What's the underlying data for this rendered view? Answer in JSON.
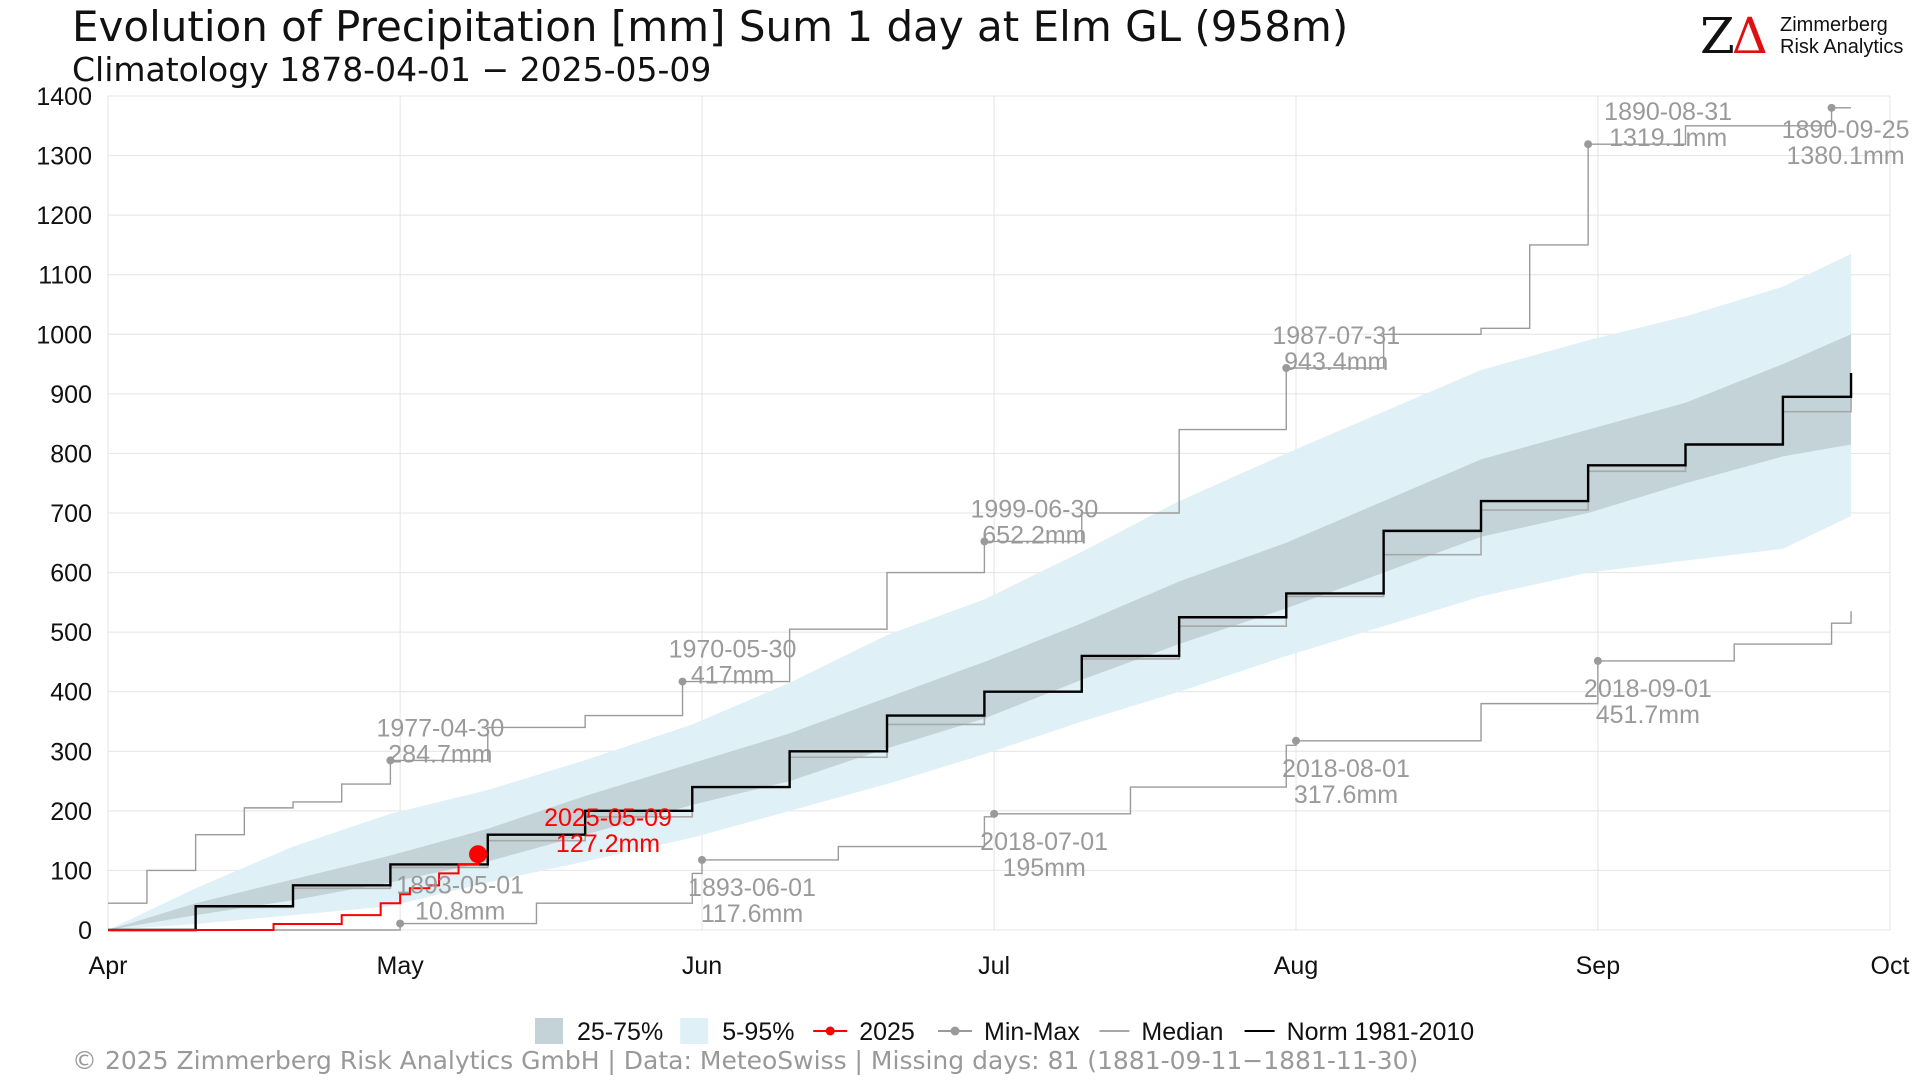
{
  "header": {
    "title": "Evolution of Precipitation [mm] Sum 1 day at Elm  GL (958m)",
    "subtitle": "Climatology 1878-04-01 − 2025-05-09"
  },
  "logo": {
    "mark": "ZΔ",
    "line1": "Zimmerberg",
    "line2": "Risk Analytics"
  },
  "footer": {
    "text": "©  2025 Zimmerberg Risk Analytics GmbH | Data: MeteoSwiss | Missing days: 81 (1881-09-11−1881-11-30)"
  },
  "colors": {
    "band_25_75": "#c3d3d8",
    "band_5_95": "#dff0f7",
    "current": "#ff0000",
    "minmax": "#9a9a9a",
    "median": "#a8a8a8",
    "norm": "#000000",
    "grid": "#e4e4e4"
  },
  "legend": [
    {
      "label": "25-75%",
      "symbol": "box",
      "color": "#c3d3d8"
    },
    {
      "label": "5-95%",
      "symbol": "box",
      "color": "#dff0f7"
    },
    {
      "label": "2025",
      "symbol": "line-point",
      "color": "#ff0000"
    },
    {
      "label": "Min-Max",
      "symbol": "line-point",
      "color": "#9a9a9a"
    },
    {
      "label": "Median",
      "symbol": "line",
      "color": "#a8a8a8"
    },
    {
      "label": "Norm 1981-2010",
      "symbol": "line",
      "color": "#000000"
    }
  ],
  "chart_data": {
    "type": "line",
    "title": "Evolution of Precipitation [mm] Sum 1 day at Elm  GL (958m)",
    "xlabel": "",
    "ylabel": "",
    "x_domain": [
      "04-01",
      "10-01"
    ],
    "ylim": [
      0,
      1400
    ],
    "y_ticks": [
      0,
      100,
      200,
      300,
      400,
      500,
      600,
      700,
      800,
      900,
      1000,
      1100,
      1200,
      1300,
      1400
    ],
    "x_ticks": [
      {
        "date": "04-01",
        "label": "Apr"
      },
      {
        "date": "05-01",
        "label": "May"
      },
      {
        "date": "06-01",
        "label": "Jun"
      },
      {
        "date": "07-01",
        "label": "Jul"
      },
      {
        "date": "08-01",
        "label": "Aug"
      },
      {
        "date": "09-01",
        "label": "Sep"
      },
      {
        "date": "10-01",
        "label": "Oct"
      }
    ],
    "grid": true,
    "legend_position": "bottom",
    "bands": [
      {
        "name": "5-95%",
        "x": [
          "04-01",
          "04-10",
          "04-20",
          "04-30",
          "05-10",
          "05-20",
          "05-31",
          "06-10",
          "06-20",
          "06-30",
          "07-10",
          "07-20",
          "07-31",
          "08-10",
          "08-20",
          "08-31",
          "09-10",
          "09-20",
          "09-27"
        ],
        "lower": [
          0,
          10,
          25,
          40,
          80,
          115,
          155,
          200,
          245,
          295,
          350,
          400,
          460,
          510,
          560,
          600,
          620,
          640,
          695
        ],
        "upper": [
          0,
          70,
          140,
          195,
          235,
          285,
          345,
          415,
          495,
          555,
          635,
          720,
          800,
          870,
          940,
          990,
          1030,
          1080,
          1135
        ]
      },
      {
        "name": "25-75%",
        "x": [
          "04-01",
          "04-10",
          "04-20",
          "04-30",
          "05-10",
          "05-20",
          "05-31",
          "06-10",
          "06-20",
          "06-30",
          "07-10",
          "07-20",
          "07-31",
          "08-10",
          "08-20",
          "08-31",
          "09-10",
          "09-20",
          "09-27"
        ],
        "lower": [
          0,
          25,
          50,
          80,
          115,
          160,
          210,
          250,
          305,
          355,
          420,
          480,
          540,
          600,
          660,
          700,
          750,
          795,
          815
        ],
        "upper": [
          0,
          45,
          85,
          125,
          170,
          225,
          280,
          330,
          390,
          450,
          515,
          585,
          650,
          720,
          790,
          840,
          885,
          950,
          1000
        ]
      }
    ],
    "series": [
      {
        "name": "Norm 1981-2010",
        "x": [
          "04-01",
          "04-10",
          "04-20",
          "04-30",
          "05-10",
          "05-20",
          "05-31",
          "06-10",
          "06-20",
          "06-30",
          "07-10",
          "07-20",
          "07-31",
          "08-10",
          "08-20",
          "08-31",
          "09-10",
          "09-20",
          "09-27"
        ],
        "y": [
          0,
          40,
          75,
          110,
          160,
          200,
          240,
          300,
          360,
          400,
          460,
          525,
          565,
          670,
          720,
          780,
          815,
          895,
          935
        ]
      },
      {
        "name": "Median",
        "x": [
          "04-01",
          "04-10",
          "04-20",
          "04-30",
          "05-10",
          "05-20",
          "05-31",
          "06-10",
          "06-20",
          "06-30",
          "07-10",
          "07-20",
          "07-31",
          "08-10",
          "08-20",
          "08-31",
          "09-10",
          "09-20",
          "09-27"
        ],
        "y": [
          0,
          38,
          70,
          105,
          150,
          190,
          240,
          290,
          345,
          400,
          455,
          510,
          560,
          630,
          705,
          770,
          815,
          870,
          905
        ]
      },
      {
        "name": "2025",
        "x": [
          "04-01",
          "04-17",
          "04-18",
          "04-24",
          "04-25",
          "04-28",
          "04-29",
          "05-01",
          "05-02",
          "05-04",
          "05-05",
          "05-07",
          "05-09"
        ],
        "y": [
          0,
          0,
          10,
          10,
          25,
          25,
          45,
          60,
          70,
          75,
          95,
          110,
          127.2
        ]
      },
      {
        "name": "Max",
        "x": [
          "04-01",
          "04-05",
          "04-10",
          "04-15",
          "04-20",
          "04-25",
          "04-30",
          "05-10",
          "05-20",
          "05-30",
          "06-10",
          "06-20",
          "06-30",
          "07-10",
          "07-20",
          "07-31",
          "08-10",
          "08-20",
          "08-25",
          "08-31",
          "09-10",
          "09-25",
          "09-27"
        ],
        "y": [
          45,
          100,
          160,
          205,
          215,
          245,
          284.7,
          340,
          360,
          417,
          505,
          600,
          652.2,
          700,
          840,
          943.4,
          1000,
          1010,
          1150,
          1319.1,
          1350,
          1380.1,
          1380.1
        ]
      },
      {
        "name": "Min",
        "x": [
          "04-01",
          "04-20",
          "05-01",
          "05-15",
          "05-31",
          "06-01",
          "06-15",
          "06-30",
          "07-01",
          "07-15",
          "07-31",
          "08-01",
          "08-20",
          "09-01",
          "09-15",
          "09-25",
          "09-27"
        ],
        "y": [
          0,
          0,
          10.8,
          45,
          95,
          117.6,
          140,
          190,
          195,
          240,
          310,
          317.6,
          380,
          451.7,
          480,
          515,
          535
        ]
      }
    ],
    "annotations": [
      {
        "date": "2025-05-09",
        "x": "05-09",
        "y": 127.2,
        "value": "127.2mm",
        "kind": "current"
      },
      {
        "date": "1977-04-30",
        "x": "04-30",
        "y": 284.7,
        "value": "284.7mm",
        "kind": "max"
      },
      {
        "date": "1970-05-30",
        "x": "05-30",
        "y": 417,
        "value": "417mm",
        "kind": "max"
      },
      {
        "date": "1999-06-30",
        "x": "06-30",
        "y": 652.2,
        "value": "652.2mm",
        "kind": "max"
      },
      {
        "date": "1987-07-31",
        "x": "07-31",
        "y": 943.4,
        "value": "943.4mm",
        "kind": "max"
      },
      {
        "date": "1890-08-31",
        "x": "08-31",
        "y": 1319.1,
        "value": "1319.1mm",
        "kind": "max"
      },
      {
        "date": "1890-09-25",
        "x": "09-25",
        "y": 1380.1,
        "value": "1380.1mm",
        "kind": "max"
      },
      {
        "date": "1893-05-01",
        "x": "05-01",
        "y": 10.8,
        "value": "10.8mm",
        "kind": "min"
      },
      {
        "date": "1893-06-01",
        "x": "06-01",
        "y": 117.6,
        "value": "117.6mm",
        "kind": "min"
      },
      {
        "date": "2018-07-01",
        "x": "07-01",
        "y": 195,
        "value": "195mm",
        "kind": "min"
      },
      {
        "date": "2018-08-01",
        "x": "08-01",
        "y": 317.6,
        "value": "317.6mm",
        "kind": "min"
      },
      {
        "date": "2018-09-01",
        "x": "09-01",
        "y": 451.7,
        "value": "451.7mm",
        "kind": "min"
      }
    ]
  }
}
